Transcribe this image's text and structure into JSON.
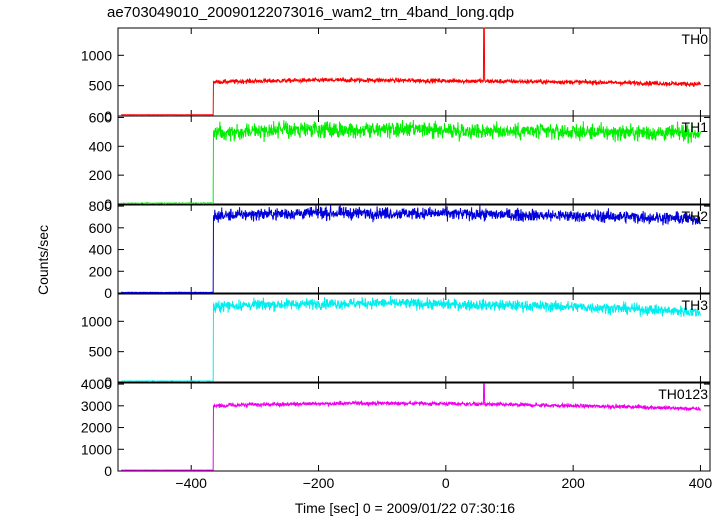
{
  "chart_data": {
    "type": "line",
    "title": "ae703049010_20090122073016_wam2_trn_4band_long.qdp",
    "xlabel": "Time [sec] 0 = 2009/01/22 07:30:16",
    "ylabel": "Counts/sec",
    "xlim": [
      -515,
      415
    ],
    "x_ticks": [
      -400,
      -200,
      0,
      200,
      400
    ],
    "x_tick_labels": [
      "−400",
      "−200",
      "0",
      "200",
      "400"
    ],
    "grid": false,
    "step_time": -365,
    "data_start": -510,
    "data_end": 400,
    "panels": [
      {
        "name": "TH0",
        "color": "#ff0000",
        "ylim": [
          0,
          1450
        ],
        "yticks": [
          0,
          500,
          1000
        ],
        "ytick_labels": [
          "0",
          "500",
          "1000"
        ],
        "pre_level": 20,
        "post_shape": [
          [
            -365,
            560
          ],
          [
            -300,
            575
          ],
          [
            -200,
            590
          ],
          [
            -100,
            590
          ],
          [
            0,
            580
          ],
          [
            100,
            570
          ],
          [
            200,
            560
          ],
          [
            300,
            545
          ],
          [
            400,
            525
          ]
        ],
        "noise": 18,
        "spikes": [
          {
            "x": 60,
            "y": 1450
          }
        ]
      },
      {
        "name": "TH1",
        "color": "#00ee00",
        "ylim": [
          0,
          610
        ],
        "yticks": [
          0,
          200,
          400,
          600
        ],
        "ytick_labels": [
          "0",
          "200",
          "400",
          "600"
        ],
        "pre_level": 5,
        "post_shape": [
          [
            -365,
            500
          ],
          [
            -300,
            510
          ],
          [
            -200,
            515
          ],
          [
            -100,
            515
          ],
          [
            0,
            510
          ],
          [
            100,
            505
          ],
          [
            200,
            500
          ],
          [
            300,
            495
          ],
          [
            400,
            490
          ]
        ],
        "noise": 28,
        "spikes": []
      },
      {
        "name": "TH2",
        "color": "#0000dd",
        "ylim": [
          0,
          810
        ],
        "yticks": [
          0,
          200,
          400,
          600,
          800
        ],
        "ytick_labels": [
          "0",
          "200",
          "400",
          "600",
          "800"
        ],
        "pre_level": 5,
        "post_shape": [
          [
            -365,
            710
          ],
          [
            -300,
            725
          ],
          [
            -200,
            735
          ],
          [
            -100,
            735
          ],
          [
            0,
            730
          ],
          [
            100,
            720
          ],
          [
            200,
            710
          ],
          [
            300,
            700
          ],
          [
            400,
            680
          ]
        ],
        "noise": 28,
        "spikes": []
      },
      {
        "name": "TH3",
        "color": "#00eeee",
        "ylim": [
          0,
          1450
        ],
        "yticks": [
          0,
          500,
          1000
        ],
        "ytick_labels": [
          "0",
          "500",
          "1000"
        ],
        "pre_level": 15,
        "post_shape": [
          [
            -365,
            1250
          ],
          [
            -300,
            1270
          ],
          [
            -200,
            1290
          ],
          [
            -100,
            1300
          ],
          [
            0,
            1280
          ],
          [
            100,
            1260
          ],
          [
            200,
            1240
          ],
          [
            300,
            1200
          ],
          [
            400,
            1150
          ]
        ],
        "noise": 45,
        "spikes": []
      },
      {
        "name": "TH0123",
        "color": "#ee00ee",
        "ylim": [
          0,
          4050
        ],
        "yticks": [
          0,
          1000,
          2000,
          3000,
          4000
        ],
        "ytick_labels": [
          "0",
          "1000",
          "2000",
          "3000",
          "4000"
        ],
        "pre_level": 40,
        "post_shape": [
          [
            -365,
            3000
          ],
          [
            -300,
            3050
          ],
          [
            -200,
            3100
          ],
          [
            -100,
            3120
          ],
          [
            0,
            3100
          ],
          [
            100,
            3050
          ],
          [
            200,
            3000
          ],
          [
            300,
            2950
          ],
          [
            400,
            2850
          ]
        ],
        "noise": 45,
        "spikes": [
          {
            "x": 60,
            "y": 4000
          }
        ]
      }
    ]
  }
}
